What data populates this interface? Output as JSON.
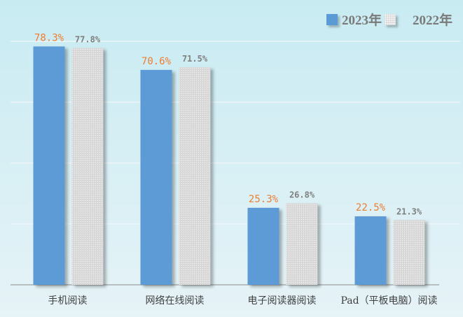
{
  "chart_data": {
    "type": "bar",
    "categories": [
      "手机阅读",
      "网络在线阅读",
      "电子阅读器阅读",
      "Pad（平板电脑）阅读"
    ],
    "series": [
      {
        "name": "2023年",
        "values": [
          78.3,
          70.6,
          25.3,
          22.5
        ],
        "labels": [
          "78.3%",
          "70.6%",
          "25.3%",
          "22.5%"
        ],
        "color": "#5b9bd5",
        "label_color": "#ed7d31"
      },
      {
        "name": "2022年",
        "values": [
          77.8,
          71.5,
          26.8,
          21.3
        ],
        "labels": [
          "77.8%",
          "71.5%",
          "26.8%",
          "21.3%"
        ],
        "color": "#d9d9d9",
        "label_color": "#7f7f7f"
      }
    ],
    "ylim": [
      0,
      80
    ],
    "grid": true,
    "legend": "top-right",
    "title": "",
    "xlabel": "",
    "ylabel": ""
  }
}
